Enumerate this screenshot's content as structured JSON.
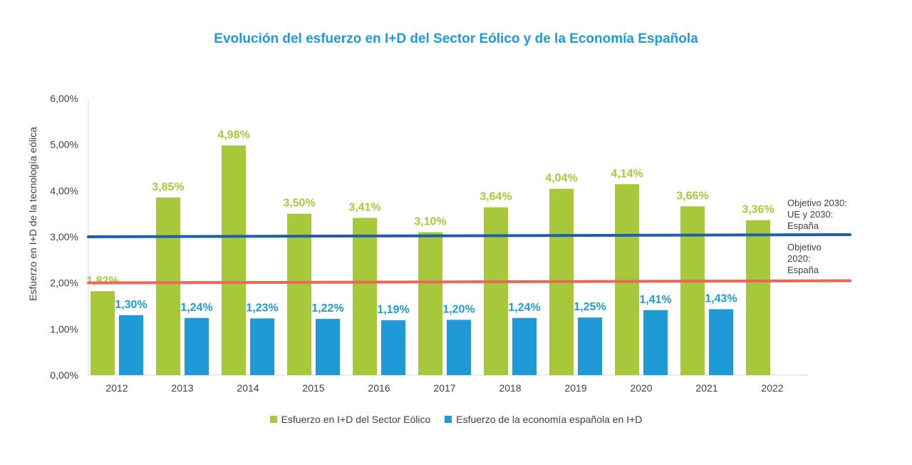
{
  "chart_data": {
    "type": "bar",
    "title": "Evolución del esfuerzo en I+D del Sector Eólico y de la Economía Española",
    "ylabel": "Esfuerzo en I+D de la tecnología eólica",
    "xlabel": "",
    "ylim": [
      0,
      6
    ],
    "yticks": [
      "0,00%",
      "1,00%",
      "2,00%",
      "3,00%",
      "4,00%",
      "5,00%",
      "6,00%"
    ],
    "categories": [
      "2012",
      "2013",
      "2014",
      "2015",
      "2016",
      "2017",
      "2018",
      "2019",
      "2020",
      "2021",
      "2022"
    ],
    "series": [
      {
        "name": "Esfuerzo en I+D del Sector Eólico",
        "color": "#a8c83c",
        "values": [
          1.82,
          3.85,
          4.98,
          3.5,
          3.41,
          3.1,
          3.64,
          4.04,
          4.14,
          3.66,
          3.36
        ],
        "labels": [
          "1,82%",
          "3,85%",
          "4,98%",
          "3,50%",
          "3,41%",
          "3,10%",
          "3,64%",
          "4,04%",
          "4,14%",
          "3,66%",
          "3,36%"
        ]
      },
      {
        "name": "Esfuerzo de la economía española en I+D",
        "color": "#1f9ad6",
        "values": [
          1.3,
          1.24,
          1.23,
          1.22,
          1.19,
          1.2,
          1.24,
          1.25,
          1.41,
          1.43,
          null
        ],
        "labels": [
          "1,30%",
          "1,24%",
          "1,23%",
          "1,22%",
          "1,19%",
          "1,20%",
          "1,24%",
          "1,25%",
          "1,41%",
          "1,43%",
          ""
        ]
      }
    ],
    "reference_lines": [
      {
        "value": 3.0,
        "label_lines": [
          "Objetivo 2030:",
          "UE y 2030:",
          "España"
        ],
        "color": "#1f5fa8"
      },
      {
        "value": 2.0,
        "label_lines": [
          "Objetivo",
          "2020:",
          "España"
        ],
        "color": "#e8685a"
      }
    ],
    "grid": false,
    "legend": "bottom"
  }
}
